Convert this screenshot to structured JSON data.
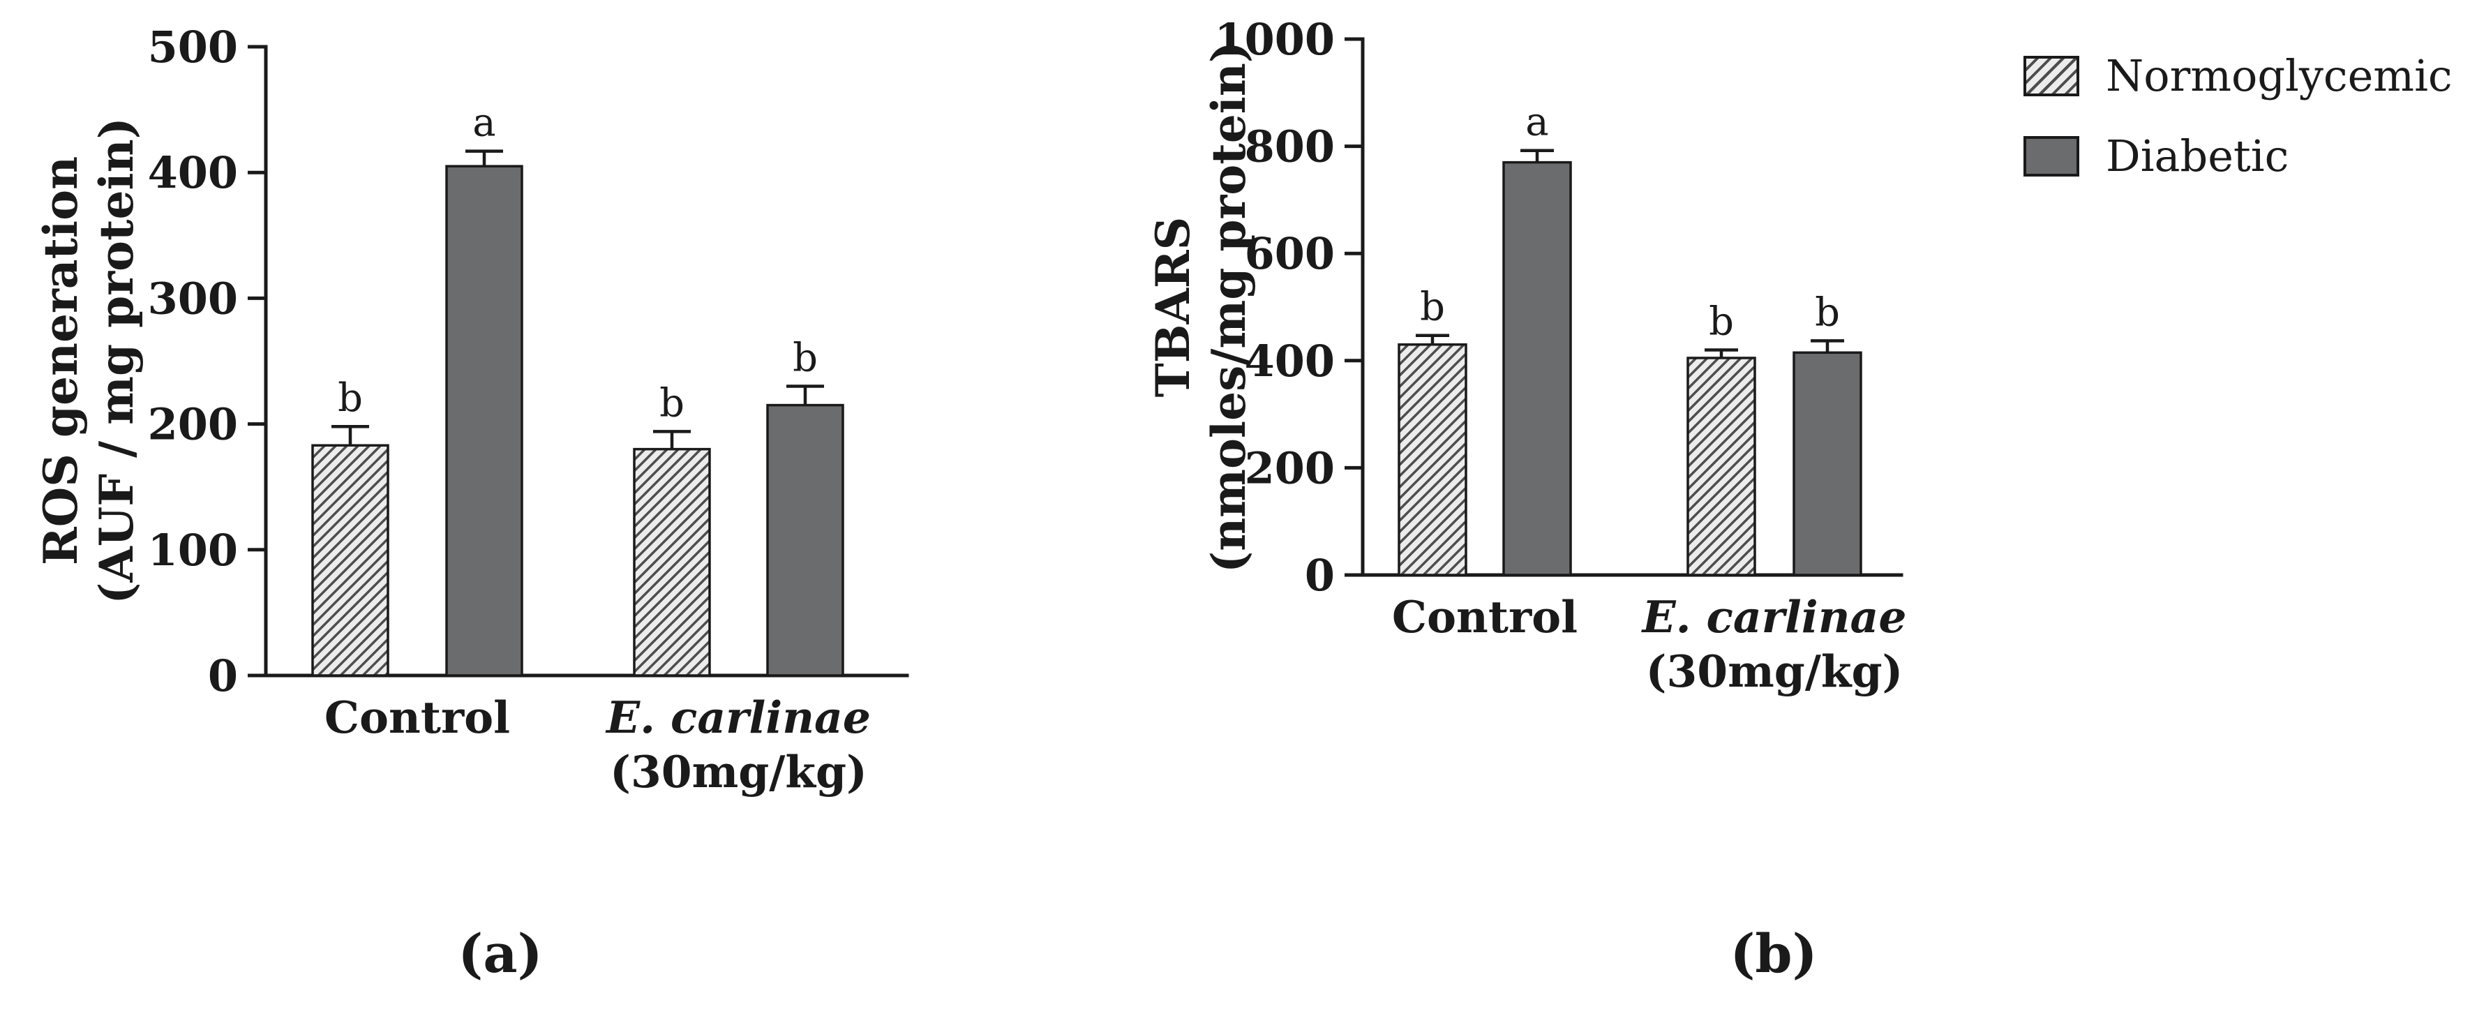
{
  "figure": {
    "panel_a_label": "(a)",
    "panel_b_label": "(b)"
  },
  "legend": {
    "items": [
      {
        "label": "Normoglycemic",
        "style": "hatched"
      },
      {
        "label": "Diabetic",
        "style": "solid"
      }
    ]
  },
  "colors": {
    "axis": "#1a1a1a",
    "bar_fill": "#6b6c6e",
    "hatch_bg": "#ececec",
    "hatch_line": "#4d4d4d"
  },
  "chart_data": [
    {
      "type": "bar",
      "panel": "a",
      "ylabel_line1": "ROS generation",
      "ylabel_line2": "(AUF / mg protein)",
      "ylim": [
        0,
        500
      ],
      "yticks": [
        0,
        100,
        200,
        300,
        400,
        500
      ],
      "legend_position": "top-right-of-figure",
      "grid": false,
      "categories": [
        {
          "line1": "Control",
          "line2": "",
          "italic": false
        },
        {
          "line1": "E. carlinae",
          "line2": "(30mg/kg)",
          "italic": true
        }
      ],
      "series": [
        {
          "name": "Normoglycemic",
          "values": [
            183,
            180
          ],
          "errors": [
            15,
            14
          ],
          "sig_labels": [
            "b",
            "b"
          ]
        },
        {
          "name": "Diabetic",
          "values": [
            405,
            215
          ],
          "errors": [
            12,
            15
          ],
          "sig_labels": [
            "a",
            "b"
          ]
        }
      ]
    },
    {
      "type": "bar",
      "panel": "b",
      "ylabel_line1": "TBARS",
      "ylabel_line2": "(nmoles/mg protein)",
      "ylim": [
        0,
        1000
      ],
      "yticks": [
        0,
        200,
        400,
        600,
        800,
        1000
      ],
      "legend_position": "top-right-of-figure",
      "grid": false,
      "categories": [
        {
          "line1": "Control",
          "line2": "",
          "italic": false
        },
        {
          "line1": "E. carlinae",
          "line2": "(30mg/kg)",
          "italic": true
        }
      ],
      "series": [
        {
          "name": "Normoglycemic",
          "values": [
            430,
            405
          ],
          "errors": [
            17,
            15
          ],
          "sig_labels": [
            "b",
            "b"
          ]
        },
        {
          "name": "Diabetic",
          "values": [
            770,
            415
          ],
          "errors": [
            22,
            22
          ],
          "sig_labels": [
            "a",
            "b"
          ]
        }
      ]
    }
  ]
}
